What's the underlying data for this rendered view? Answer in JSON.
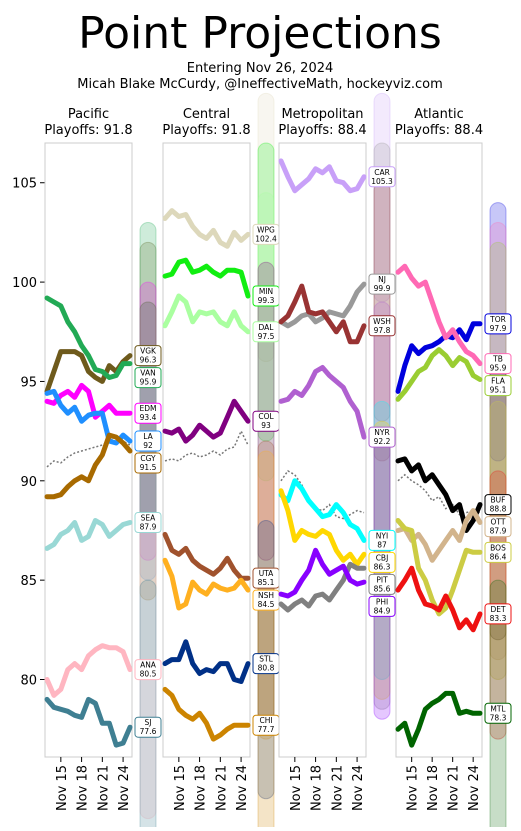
{
  "chart_data": {
    "type": "line",
    "title": "Point Projections",
    "subtitle": [
      "Entering Nov 26, 2024",
      "Micah Blake McCurdy, @IneffectiveMath, hockeyviz.com"
    ],
    "categories": [
      "Nov 13",
      "Nov 14",
      "Nov 15",
      "Nov 16",
      "Nov 17",
      "Nov 18",
      "Nov 19",
      "Nov 20",
      "Nov 21",
      "Nov 22",
      "Nov 23",
      "Nov 24",
      "Nov 25"
    ],
    "xticks": [
      "Nov 15",
      "Nov 18",
      "Nov 21",
      "Nov 24"
    ],
    "ylim": [
      76.1,
      107.0
    ],
    "yticks": [
      80,
      85,
      90,
      95,
      100,
      105
    ],
    "panels": [
      {
        "title": "Pacific",
        "subtitle": "Playoffs: 91.8",
        "playoff_line": [
          90.7,
          91.0,
          90.9,
          91.2,
          91.4,
          91.5,
          91.6,
          91.7,
          91.8,
          92.0,
          92.2,
          92.0,
          91.8
        ],
        "series": [
          {
            "name": "VGK",
            "color": "#6e5a1c",
            "range": [
              88,
              102
            ],
            "values": [
              94.5,
              95.5,
              96.5,
              96.5,
              96.5,
              96.3,
              95.5,
              95.2,
              95.0,
              95.8,
              95.5,
              96.0,
              96.3
            ]
          },
          {
            "name": "VAN",
            "color": "#22aa55",
            "range": [
              87.5,
              103
            ],
            "values": [
              99.2,
              99.0,
              98.8,
              98.0,
              97.5,
              96.8,
              96.3,
              95.6,
              95.5,
              95.2,
              95.3,
              95.9,
              95.9
            ]
          },
          {
            "name": "EDM",
            "color": "#ff00ff",
            "range": [
              86,
              100
            ],
            "values": [
              94.0,
              93.9,
              94.3,
              94.5,
              94.2,
              94.8,
              94.5,
              93.2,
              93.5,
              93.8,
              93.4,
              93.4,
              93.4
            ]
          },
          {
            "name": "LA",
            "color": "#1f8fff",
            "range": [
              85,
              99
            ],
            "values": [
              94.4,
              94.5,
              93.8,
              93.4,
              93.7,
              93.0,
              93.3,
              93.4,
              93.4,
              92.0,
              91.9,
              92.3,
              92.0
            ]
          },
          {
            "name": "CGY",
            "color": "#a86a00",
            "range": [
              84,
              99
            ],
            "values": [
              89.2,
              89.2,
              89.3,
              89.7,
              90.0,
              90.2,
              90.0,
              90.8,
              91.3,
              92.3,
              92.2,
              91.9,
              91.5
            ]
          },
          {
            "name": "SEA",
            "color": "#99d8d5",
            "range": [
              80,
              96
            ],
            "values": [
              86.6,
              86.8,
              87.3,
              87.5,
              87.9,
              87.0,
              87.2,
              88.0,
              87.8,
              87.2,
              87.5,
              87.8,
              87.9
            ]
          },
          {
            "name": "ANA",
            "color": "#ffb6c1",
            "range": [
              73,
              88
            ],
            "values": [
              80.0,
              79.2,
              79.5,
              80.5,
              80.8,
              80.5,
              81.2,
              81.5,
              81.7,
              81.6,
              81.6,
              81.4,
              80.5
            ]
          },
          {
            "name": "SJ",
            "color": "#3f7f92",
            "range": [
              71,
              85
            ],
            "values": [
              79.0,
              78.6,
              78.5,
              78.4,
              78.2,
              78.1,
              79.0,
              78.8,
              77.8,
              77.8,
              76.7,
              76.8,
              77.6
            ]
          }
        ]
      },
      {
        "title": "Central",
        "subtitle": "Playoffs: 91.8",
        "playoff_line": [
          91.0,
          91.1,
          91.0,
          91.3,
          91.4,
          91.2,
          91.3,
          91.5,
          91.3,
          91.6,
          91.7,
          92.5,
          91.8
        ],
        "series": [
          {
            "name": "WPG",
            "color": "#ddd8bb",
            "range": [
              96,
              109.5
            ],
            "values": [
              103.2,
              103.6,
              103.3,
              103.4,
              102.8,
              102.4,
              102.2,
              102.6,
              102.0,
              101.8,
              102.5,
              102.1,
              102.4
            ]
          },
          {
            "name": "MIN",
            "color": "#11ee11",
            "range": [
              92,
              107
            ],
            "values": [
              100.3,
              100.4,
              101.0,
              101.1,
              100.5,
              100.6,
              100.8,
              100.5,
              100.3,
              100.6,
              100.6,
              100.5,
              99.3
            ]
          },
          {
            "name": "DAL",
            "color": "#aaffa0",
            "range": [
              90,
              104.5
            ],
            "values": [
              97.8,
              98.5,
              99.3,
              99.0,
              98.0,
              98.5,
              98.4,
              98.5,
              98.0,
              97.8,
              98.5,
              97.8,
              97.5
            ]
          },
          {
            "name": "COL",
            "color": "#800080",
            "range": [
              86,
              101
            ],
            "values": [
              92.5,
              92.4,
              92.6,
              92.0,
              92.3,
              92.8,
              92.5,
              92.2,
              92.4,
              93.2,
              94.0,
              93.5,
              93.0
            ]
          },
          {
            "name": "UTA",
            "color": "#a0522d",
            "range": [
              78,
              92
            ],
            "values": [
              87.3,
              86.5,
              86.3,
              86.6,
              86.0,
              85.7,
              85.5,
              85.3,
              85.6,
              86.1,
              85.5,
              85.1,
              85.1
            ]
          },
          {
            "name": "NSH",
            "color": "#ffb020",
            "range": [
              77,
              91.5
            ],
            "values": [
              86.0,
              85.2,
              83.6,
              83.8,
              84.9,
              84.5,
              84.3,
              84.8,
              84.6,
              84.5,
              84.6,
              85.0,
              84.5
            ]
          },
          {
            "name": "STL",
            "color": "#003087",
            "range": [
              74,
              88
            ],
            "values": [
              80.8,
              81.0,
              81.0,
              81.9,
              80.8,
              80.3,
              80.5,
              80.4,
              80.8,
              80.8,
              80.0,
              79.9,
              80.8
            ]
          },
          {
            "name": "CHI",
            "color": "#cc8400",
            "range": [
              71,
              85
            ],
            "values": [
              79.5,
              79.2,
              78.5,
              78.2,
              78.0,
              78.3,
              77.8,
              77.0,
              77.2,
              77.5,
              77.7,
              77.7,
              77.7
            ]
          }
        ]
      },
      {
        "title": "Metropolitan",
        "subtitle": "Playoffs: 88.4",
        "playoff_line": [
          90.0,
          90.5,
          90.3,
          89.8,
          89.0,
          88.6,
          88.5,
          88.8,
          88.2,
          88.1,
          88.3,
          88.5,
          88.4
        ],
        "series": [
          {
            "name": "CAR",
            "color": "#c8a0f8",
            "range": [
              99,
              109.5
            ],
            "values": [
              106.1,
              105.3,
              104.6,
              104.9,
              105.2,
              105.7,
              105.5,
              105.8,
              105.1,
              105.0,
              104.6,
              104.7,
              105.3
            ]
          },
          {
            "name": "NJ",
            "color": "#999999",
            "range": [
              93,
              107
            ],
            "values": [
              98.0,
              97.8,
              98.0,
              98.3,
              98.4,
              98.0,
              98.2,
              98.5,
              98.4,
              98.3,
              98.8,
              99.5,
              99.9
            ]
          },
          {
            "name": "WSH",
            "color": "#993333",
            "range": [
              91,
              105
            ],
            "values": [
              98.0,
              98.3,
              99.0,
              99.8,
              98.5,
              98.4,
              98.5,
              98.0,
              97.5,
              98.0,
              97.0,
              97.0,
              97.8
            ]
          },
          {
            "name": "NYR",
            "color": "#b060d0",
            "range": [
              85,
              99
            ],
            "values": [
              94.0,
              94.1,
              94.5,
              94.3,
              94.8,
              95.5,
              95.7,
              95.3,
              95.0,
              94.7,
              94.0,
              93.5,
              92.2
            ]
          },
          {
            "name": "NYI",
            "color": "#00ffff",
            "range": [
              80,
              94
            ],
            "values": [
              89.3,
              89.0,
              90.0,
              89.6,
              89.0,
              88.6,
              88.2,
              88.3,
              88.8,
              88.4,
              87.8,
              87.6,
              87.0
            ]
          },
          {
            "name": "CBJ",
            "color": "#ffd700",
            "range": [
              79,
              93
            ],
            "values": [
              89.5,
              88.5,
              87.0,
              87.5,
              87.3,
              87.2,
              87.5,
              87.3,
              86.5,
              86.0,
              86.3,
              85.8,
              86.3
            ]
          },
          {
            "name": "PIT",
            "color": "#808080",
            "range": [
              78.5,
              92.5
            ],
            "values": [
              83.8,
              83.5,
              83.8,
              84.0,
              83.7,
              84.2,
              84.3,
              84.0,
              84.5,
              85.0,
              85.8,
              85.6,
              85.6
            ]
          },
          {
            "name": "PHI",
            "color": "#8800ff",
            "range": [
              78,
              92
            ],
            "values": [
              84.3,
              84.2,
              84.4,
              85.0,
              85.5,
              86.5,
              85.8,
              85.3,
              85.5,
              85.7,
              85.0,
              84.8,
              84.9
            ]
          }
        ]
      },
      {
        "title": "Atlantic",
        "subtitle": "Playoffs: 88.4",
        "playoff_line": [
          90.0,
          90.3,
          90.0,
          89.8,
          89.5,
          89.0,
          89.2,
          88.6,
          88.8,
          88.3,
          88.4,
          88.5,
          88.4
        ],
        "series": [
          {
            "name": "TOR",
            "color": "#0000dd",
            "range": [
              91,
              104
            ],
            "values": [
              94.5,
              95.8,
              96.8,
              96.4,
              96.7,
              96.8,
              97.0,
              97.3,
              97.2,
              97.6,
              97.1,
              97.9,
              97.9
            ]
          },
          {
            "name": "TB",
            "color": "#ff69b4",
            "range": [
              89,
              103
            ],
            "values": [
              100.5,
              100.8,
              100.2,
              99.8,
              100.0,
              99.0,
              98.0,
              97.2,
              97.6,
              97.0,
              96.5,
              96.3,
              95.9
            ]
          },
          {
            "name": "FLA",
            "color": "#9acd32",
            "range": [
              88,
              102
            ],
            "values": [
              94.1,
              94.5,
              95.0,
              95.5,
              95.7,
              96.3,
              96.6,
              96.3,
              95.8,
              96.2,
              96.0,
              95.3,
              95.1
            ]
          },
          {
            "name": "BUF",
            "color": "#000000",
            "range": [
              82,
              96
            ],
            "values": [
              91.0,
              91.1,
              90.5,
              90.8,
              90.0,
              90.3,
              89.8,
              89.3,
              88.5,
              88.8,
              87.5,
              88.0,
              88.8
            ]
          },
          {
            "name": "OTT",
            "color": "#d2b48c",
            "range": [
              81,
              95
            ],
            "values": [
              87.5,
              87.6,
              87.0,
              87.3,
              86.8,
              86.0,
              86.5,
              87.0,
              87.5,
              87.0,
              88.0,
              88.5,
              87.9
            ]
          },
          {
            "name": "BOS",
            "color": "#cccc44",
            "range": [
              80,
              94
            ],
            "values": [
              88.0,
              87.6,
              87.5,
              85.6,
              85.0,
              84.0,
              83.3,
              83.6,
              84.5,
              85.5,
              86.5,
              86.4,
              86.4
            ]
          },
          {
            "name": "DET",
            "color": "#ee1111",
            "range": [
              77,
              90.5
            ],
            "values": [
              84.5,
              85.0,
              85.6,
              84.5,
              83.8,
              83.7,
              83.5,
              84.2,
              83.5,
              82.6,
              83.0,
              82.5,
              83.3
            ]
          },
          {
            "name": "MTL",
            "color": "#006400",
            "range": [
              71.5,
              85
            ],
            "values": [
              77.5,
              77.8,
              76.7,
              77.5,
              78.5,
              78.8,
              79.0,
              79.3,
              79.3,
              78.3,
              78.4,
              78.3,
              78.3
            ]
          }
        ]
      }
    ]
  }
}
